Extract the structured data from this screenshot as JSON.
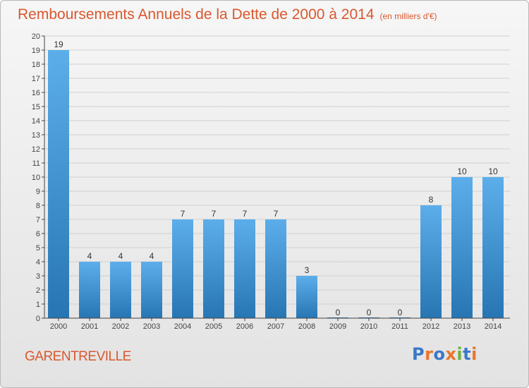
{
  "title": "Remboursements Annuels de la Dette de 2000 à 2014",
  "unit": "(en milliers d'€)",
  "commune": "GARENTREVILLE",
  "logo": {
    "text": "Proxiti",
    "letters": [
      {
        "ch": "P",
        "color": "#3a78c9"
      },
      {
        "ch": "r",
        "color": "#e9762b"
      },
      {
        "ch": "o",
        "color": "#3a78c9"
      },
      {
        "ch": "x",
        "color": "#e9762b"
      },
      {
        "ch": "i",
        "color": "#6db33f"
      },
      {
        "ch": "t",
        "color": "#3a78c9"
      },
      {
        "ch": "i",
        "color": "#e9762b"
      }
    ]
  },
  "colors": {
    "accent": "#d9582e",
    "bar_light": "#5caeea",
    "bar_dark": "#2776b3",
    "axis": "#444444",
    "grid": "#d0d0d0"
  },
  "chart_data": {
    "type": "bar",
    "title": "Remboursements Annuels de la Dette de 2000 à 2014",
    "subtitle": "(en milliers d'€)",
    "xlabel": "",
    "ylabel": "",
    "categories": [
      "2000",
      "2001",
      "2002",
      "2003",
      "2004",
      "2005",
      "2006",
      "2007",
      "2008",
      "2009",
      "2010",
      "2011",
      "2012",
      "2013",
      "2014"
    ],
    "values": [
      19,
      4,
      4,
      4,
      7,
      7,
      7,
      7,
      3,
      0,
      0,
      0,
      8,
      10,
      10
    ],
    "ylim": [
      0,
      20
    ],
    "yticks": [
      0,
      1,
      2,
      3,
      4,
      5,
      6,
      7,
      8,
      9,
      10,
      11,
      12,
      13,
      14,
      15,
      16,
      17,
      18,
      19,
      20
    ],
    "grid": true,
    "data_labels": true
  }
}
